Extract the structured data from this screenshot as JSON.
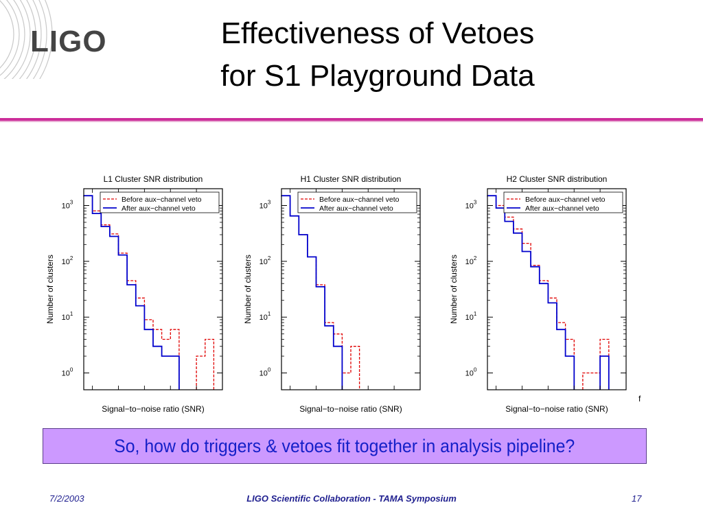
{
  "slide": {
    "title_line1": "Effectiveness of Vetoes",
    "title_line2": "for S1 Playground Data",
    "logo_text": "LIGO",
    "callout": "So,  how do triggers & vetoes fit together in analysis pipeline?",
    "stray_char": "f",
    "footer": {
      "date": "7/2/2003",
      "center": "LIGO Scientific Collaboration - TAMA Symposium",
      "page": "17"
    },
    "colors": {
      "accent_rule": "#cc2e9a",
      "callout_bg": "#cc99ff",
      "callout_text": "#1520c8",
      "footer_text": "#1f1f8f",
      "before_series": "#e00000",
      "after_series": "#0000cc"
    }
  },
  "chart_data": [
    {
      "type": "line",
      "title": "L1 Cluster SNR distribution",
      "xlabel": "Signal−to−noise ratio (SNR)",
      "ylabel": "Number of clusters",
      "y_scale": "log",
      "ylim": [
        0.5,
        2000
      ],
      "ytick_labels": [
        {
          "base": "10",
          "exp": "0"
        },
        {
          "base": "10",
          "exp": "1"
        },
        {
          "base": "10",
          "exp": "2"
        },
        {
          "base": "10",
          "exp": "3"
        }
      ],
      "step": true,
      "legend_position": "top-right",
      "series": [
        {
          "name": "Before aux−channel veto",
          "style": "dashed",
          "values": [
            1500,
            800,
            450,
            310,
            140,
            45,
            22,
            9,
            6,
            4,
            6,
            0,
            0,
            2,
            4,
            0
          ]
        },
        {
          "name": "After aux−channel veto",
          "style": "solid",
          "values": [
            1500,
            720,
            420,
            280,
            130,
            38,
            16,
            6,
            3,
            2,
            2,
            0,
            0,
            0,
            0,
            0
          ]
        }
      ]
    },
    {
      "type": "line",
      "title": "H1 Cluster SNR distribution",
      "xlabel": "Signal−to−noise ratio (SNR)",
      "ylabel": "Number of clusters",
      "y_scale": "log",
      "ylim": [
        0.5,
        2000
      ],
      "ytick_labels": [
        {
          "base": "10",
          "exp": "0"
        },
        {
          "base": "10",
          "exp": "1"
        },
        {
          "base": "10",
          "exp": "2"
        },
        {
          "base": "10",
          "exp": "3"
        }
      ],
      "step": true,
      "legend_position": "top-right",
      "series": [
        {
          "name": "Before aux−channel veto",
          "style": "dashed",
          "values": [
            1500,
            650,
            300,
            120,
            38,
            8,
            5,
            1,
            3,
            0,
            0,
            0,
            0,
            0,
            0,
            0
          ]
        },
        {
          "name": "After aux−channel veto",
          "style": "solid",
          "values": [
            1500,
            650,
            300,
            120,
            35,
            7,
            3,
            0,
            0,
            0,
            0,
            0,
            0,
            0,
            0,
            0
          ]
        }
      ]
    },
    {
      "type": "line",
      "title": "H2 Cluster SNR distribution",
      "xlabel": "Signal−to−noise ratio (SNR)",
      "ylabel": "Number of clusters",
      "y_scale": "log",
      "ylim": [
        0.5,
        2000
      ],
      "ytick_labels": [
        {
          "base": "10",
          "exp": "0"
        },
        {
          "base": "10",
          "exp": "1"
        },
        {
          "base": "10",
          "exp": "2"
        },
        {
          "base": "10",
          "exp": "3"
        }
      ],
      "step": true,
      "legend_position": "top-right",
      "series": [
        {
          "name": "Before aux−channel veto",
          "style": "dashed",
          "values": [
            1500,
            1000,
            620,
            380,
            210,
            85,
            45,
            22,
            8,
            4,
            0,
            1,
            1,
            4,
            0,
            0
          ]
        },
        {
          "name": "After aux−channel veto",
          "style": "solid",
          "values": [
            1500,
            900,
            520,
            320,
            150,
            80,
            40,
            18,
            6,
            2,
            0,
            0,
            0,
            2,
            0,
            0
          ]
        }
      ]
    }
  ]
}
